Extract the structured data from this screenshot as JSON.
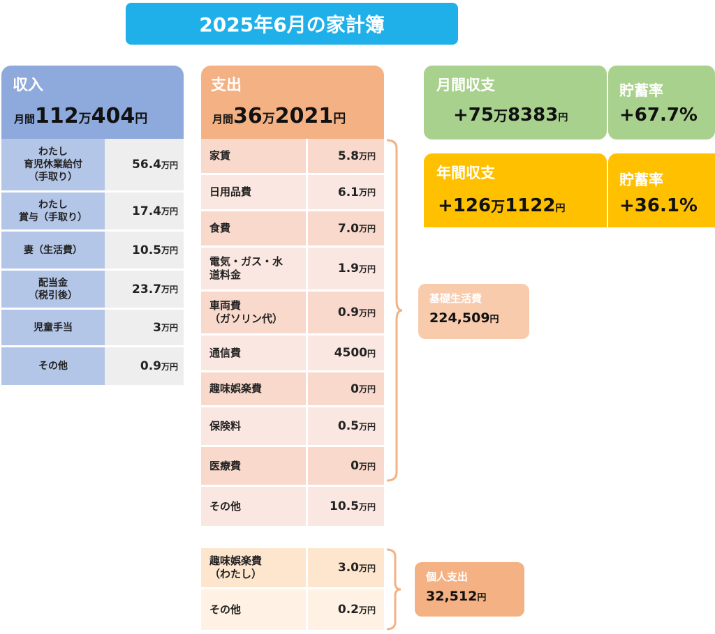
{
  "title": "2025年6月の家計簿",
  "income": {
    "label": "収入",
    "total_prefix": "月間",
    "total_man": "112",
    "total_man_unit": "万",
    "total_rest": "404",
    "total_unit": "円",
    "rows": [
      {
        "name": "わたし\n育児休業給付\n（手取り）",
        "value": "56.4",
        "unit": "万円"
      },
      {
        "name": "わたし\n賞与（手取り）",
        "value": "17.4",
        "unit": "万円"
      },
      {
        "name": "妻（生活費）",
        "value": "10.5",
        "unit": "万円"
      },
      {
        "name": "配当金\n（税引後）",
        "value": "23.7",
        "unit": "万円"
      },
      {
        "name": "児童手当",
        "value": "3",
        "unit": "万円"
      },
      {
        "name": "その他",
        "value": "0.9",
        "unit": "万円"
      }
    ]
  },
  "expense": {
    "label": "支出",
    "total_prefix": "月間",
    "total_man": "36",
    "total_man_unit": "万",
    "total_rest": "2021",
    "total_unit": "円",
    "rows": [
      {
        "name": "家賃",
        "value": "5.8",
        "unit": "万円"
      },
      {
        "name": "日用品費",
        "value": "6.1",
        "unit": "万円"
      },
      {
        "name": "食費",
        "value": "7.0",
        "unit": "万円"
      },
      {
        "name": "電気・ガス・水\n道料金",
        "value": "1.9",
        "unit": "万円"
      },
      {
        "name": "車両費\n（ガソリン代）",
        "value": "0.9",
        "unit": "万円"
      },
      {
        "name": "通信費",
        "value": "4500",
        "unit": "円"
      },
      {
        "name": "趣味娯楽費",
        "value": "0",
        "unit": "万円"
      },
      {
        "name": "保険料",
        "value": "0.5",
        "unit": "万円"
      },
      {
        "name": "医療費",
        "value": "0",
        "unit": "万円"
      },
      {
        "name": "その他",
        "value": "10.5",
        "unit": "万円"
      }
    ],
    "personal_rows": [
      {
        "name": "趣味娯楽費\n（わたし）",
        "value": "3.0",
        "unit": "万円"
      },
      {
        "name": "その他",
        "value": "0.2",
        "unit": "万円"
      }
    ]
  },
  "monthly_balance": {
    "label": "月間収支",
    "value_a": "+75",
    "value_man": "万",
    "value_b": "8383",
    "unit": "円"
  },
  "monthly_savings": {
    "label": "貯蓄率",
    "value": "+67.7%"
  },
  "annual_balance": {
    "label": "年間収支",
    "value_a": "+126",
    "value_man": "万",
    "value_b": "1122",
    "unit": "円"
  },
  "annual_savings": {
    "label": "貯蓄率",
    "value": "+36.1%"
  },
  "basic_living": {
    "label": "基礎生活費",
    "value": "224,509",
    "unit": "円"
  },
  "personal": {
    "label": "個人支出",
    "value": "32,512",
    "unit": "円"
  },
  "colors": {
    "title_bg": "#1fb0ea",
    "income_header": "#8eaadc",
    "expense_header": "#f4b183",
    "monthly_box": "#a9d18e",
    "annual_box": "#ffc000",
    "basic_callout": "#f8cbad",
    "personal_callout": "#f4b183"
  }
}
